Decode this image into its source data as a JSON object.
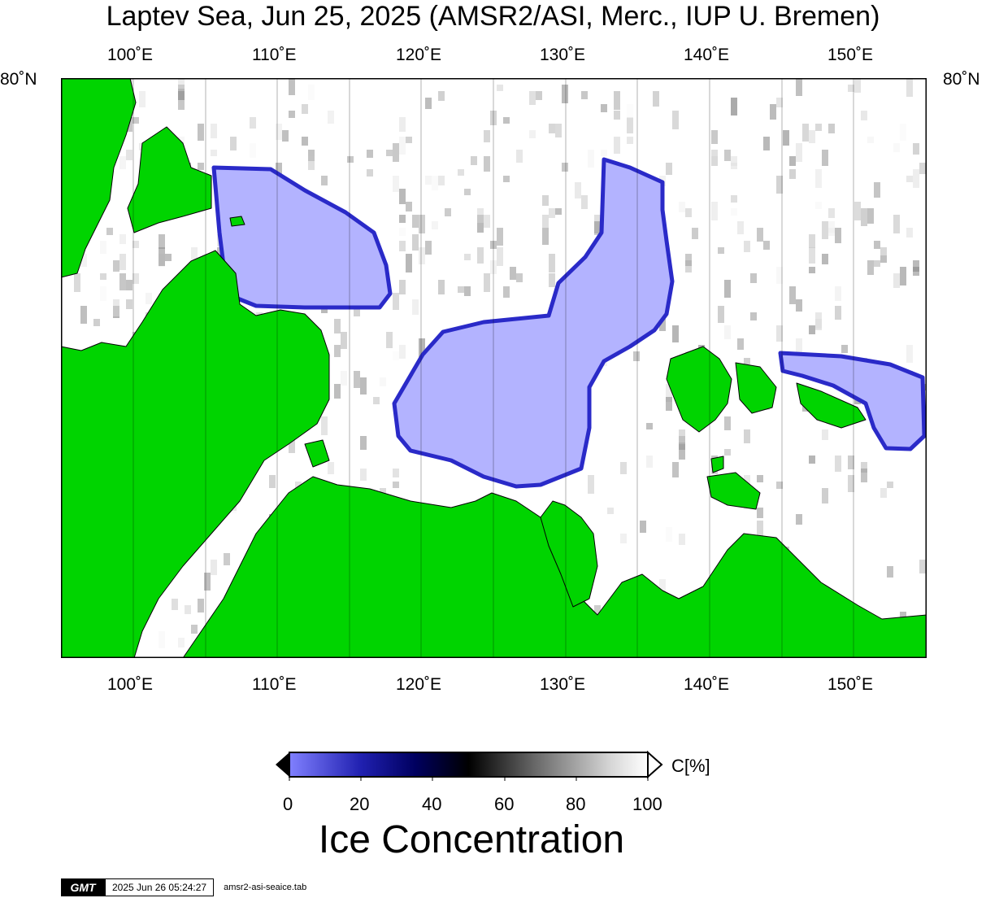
{
  "title": "Laptev Sea, Jun 25, 2025 (AMSR2/ASI, Merc., IUP U. Bremen)",
  "map": {
    "lon_min": 95,
    "lon_max": 155,
    "lon_ticks": [
      "100˚E",
      "110˚E",
      "120˚E",
      "130˚E",
      "140˚E",
      "150˚E"
    ],
    "lat_tick": "80˚N",
    "colors": {
      "land": "#00d400",
      "open_water": "#b3b3ff",
      "edge_blue": "#2a2ac8",
      "high_ice": "#ffffff"
    }
  },
  "colorbar": {
    "tick_labels": [
      "0",
      "20",
      "40",
      "60",
      "80",
      "100"
    ],
    "unit": "C[%]",
    "title": "Ice Concentration",
    "range": [
      0,
      100
    ]
  },
  "footer": {
    "logo": "GMT",
    "timestamp": "2025 Jun 26 05:24:27",
    "file": "amsr2-asi-seaice.tab"
  }
}
